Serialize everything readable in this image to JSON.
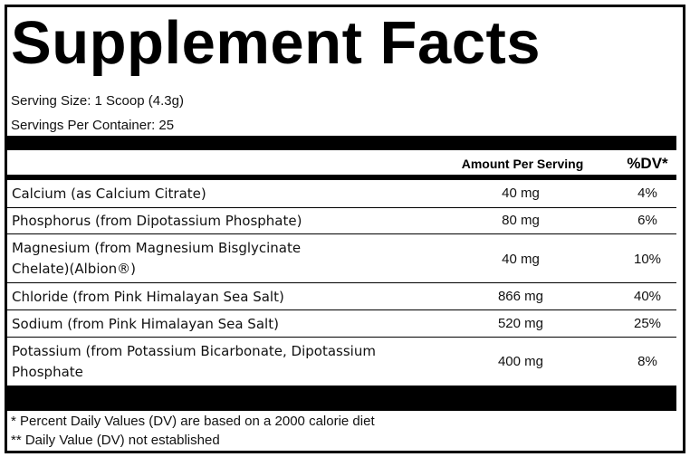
{
  "title": "Supplement Facts",
  "serving_size": "Serving Size: 1 Scoop (4.3g)",
  "servings_per_container": "Servings Per Container: 25",
  "columns": {
    "amount": "Amount Per Serving",
    "dv": "%DV*"
  },
  "rows": [
    {
      "name": "Calcium (as Calcium Citrate)",
      "amount": "40 mg",
      "dv": "4%"
    },
    {
      "name": "Phosphorus (from Dipotassium Phosphate)",
      "amount": "80 mg",
      "dv": "6%"
    },
    {
      "name_line1": "Magnesium (from Magnesium Bisglycinate",
      "name_line2": "Chelate)(Albion®)",
      "amount": "40 mg",
      "dv": "10%"
    },
    {
      "name": "Chloride (from Pink Himalayan Sea Salt)",
      "amount": "866 mg",
      "dv": "40%"
    },
    {
      "name": "Sodium (from Pink Himalayan Sea Salt)",
      "amount": "520 mg",
      "dv": "25%"
    },
    {
      "name_line1": "Potassium (from Potassium Bicarbonate, Dipotassium",
      "name_line2": "Phosphate",
      "amount": "400 mg",
      "dv": "8%"
    }
  ],
  "footnotes": [
    "* Percent Daily Values (DV) are based on a 2000 calorie diet",
    "** Daily Value (DV) not established"
  ]
}
